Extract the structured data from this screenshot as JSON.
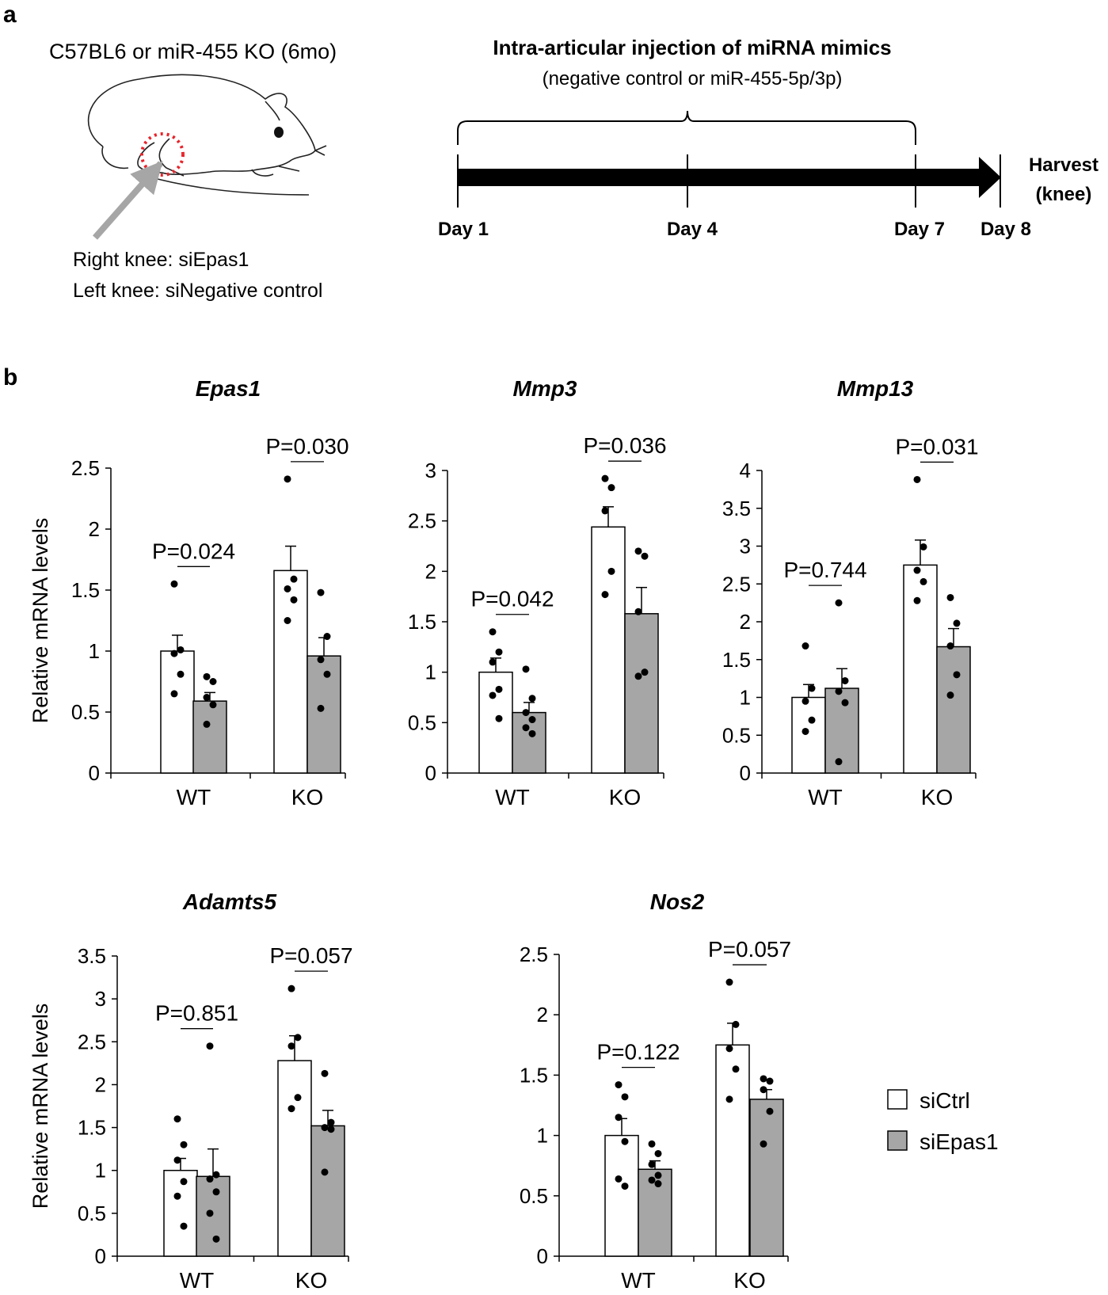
{
  "panel_a": {
    "label": "a",
    "mouse_title": "C57BL6 or miR-455  KO (6mo)",
    "right_knee": "Right knee: siEpas1",
    "left_knee": "Left knee: siNegative control",
    "injection_title": "Intra-articular injection of miRNA mimics",
    "injection_sub": "(negative control or miR-455-5p/3p)",
    "days": [
      "Day 1",
      "Day 4",
      "Day 7",
      "Day 8"
    ],
    "harvest_line1": "Harvest",
    "harvest_line2": "(knee)",
    "colors": {
      "circle": "#e8232a",
      "arrow": "#a6a6a6"
    }
  },
  "panel_b": {
    "label": "b",
    "ylabel": "Relative mRNA levels",
    "legend": [
      "siCtrl",
      "siEpas1"
    ],
    "colors": {
      "siCtrl": "#ffffff",
      "siEpas1": "#a6a6a6"
    }
  },
  "chart_data": [
    {
      "type": "bar",
      "title": "Epas1",
      "categories": [
        "WT",
        "KO"
      ],
      "ylim": [
        0,
        2.5
      ],
      "yticks": [
        "0",
        "0.5",
        "1",
        "1.5",
        "2",
        "2.5"
      ],
      "ytick_values": [
        0,
        0.5,
        1,
        1.5,
        2,
        2.5
      ],
      "ylabel": "Relative mRNA levels",
      "series": [
        {
          "name": "siCtrl",
          "values": [
            1.0,
            1.66
          ],
          "errors": [
            0.13,
            0.2
          ]
        },
        {
          "name": "siEpas1",
          "values": [
            0.59,
            0.96
          ],
          "errors": [
            0.07,
            0.15
          ]
        }
      ],
      "points": [
        [
          [
            1.55,
            1.01,
            0.98,
            0.81,
            0.65
          ],
          [
            0.79,
            0.75,
            0.62,
            0.56,
            0.4
          ]
        ],
        [
          [
            2.41,
            1.59,
            1.51,
            1.42,
            1.25
          ],
          [
            1.48,
            1.12,
            0.93,
            0.81,
            0.53
          ]
        ]
      ],
      "pvalues": [
        "P=0.024",
        "P=0.030"
      ]
    },
    {
      "type": "bar",
      "title": "Mmp3",
      "categories": [
        "WT",
        "KO"
      ],
      "ylim": [
        0,
        3
      ],
      "yticks": [
        "0",
        "0.5",
        "1",
        "1.5",
        "2",
        "2.5",
        "3"
      ],
      "ytick_values": [
        0,
        0.5,
        1,
        1.5,
        2,
        2.5,
        3
      ],
      "ylabel": "",
      "series": [
        {
          "name": "siCtrl",
          "values": [
            1.0,
            2.44
          ],
          "errors": [
            0.14,
            0.2
          ]
        },
        {
          "name": "siEpas1",
          "values": [
            0.6,
            1.58
          ],
          "errors": [
            0.1,
            0.26
          ]
        }
      ],
      "points": [
        [
          [
            1.4,
            1.2,
            1.1,
            0.83,
            0.77,
            0.54
          ],
          [
            1.03,
            0.74,
            0.6,
            0.53,
            0.45,
            0.39
          ]
        ],
        [
          [
            2.92,
            2.83,
            2.6,
            2.0,
            1.77
          ],
          [
            2.2,
            2.15,
            1.6,
            1.0,
            0.96
          ]
        ]
      ],
      "pvalues": [
        "P=0.042",
        "P=0.036"
      ]
    },
    {
      "type": "bar",
      "title": "Mmp13",
      "categories": [
        "WT",
        "KO"
      ],
      "ylim": [
        0,
        4
      ],
      "yticks": [
        "0",
        "0.5",
        "1",
        "1.5",
        "2",
        "2.5",
        "3",
        "3.5",
        "4"
      ],
      "ytick_values": [
        0,
        0.5,
        1,
        1.5,
        2,
        2.5,
        3,
        3.5,
        4
      ],
      "ylabel": "",
      "series": [
        {
          "name": "siCtrl",
          "values": [
            1.0,
            2.75
          ],
          "errors": [
            0.17,
            0.33
          ]
        },
        {
          "name": "siEpas1",
          "values": [
            1.12,
            1.67
          ],
          "errors": [
            0.26,
            0.24
          ]
        }
      ],
      "points": [
        [
          [
            1.68,
            1.12,
            0.95,
            0.7,
            0.55
          ],
          [
            2.25,
            1.22,
            1.08,
            0.93,
            0.15
          ]
        ],
        [
          [
            3.88,
            2.99,
            2.68,
            2.53,
            2.28
          ],
          [
            2.32,
            1.98,
            1.68,
            1.3,
            1.03
          ]
        ]
      ],
      "pvalues": [
        "P=0.744",
        "P=0.031"
      ]
    },
    {
      "type": "bar",
      "title": "Adamts5",
      "categories": [
        "WT",
        "KO"
      ],
      "ylim": [
        0,
        3.5
      ],
      "yticks": [
        "0",
        "0.5",
        "1",
        "1.5",
        "2",
        "2.5",
        "3",
        "3.5"
      ],
      "ytick_values": [
        0,
        0.5,
        1,
        1.5,
        2,
        2.5,
        3,
        3.5
      ],
      "ylabel": "Relative mRNA levels",
      "series": [
        {
          "name": "siCtrl",
          "values": [
            1.0,
            2.28
          ],
          "errors": [
            0.14,
            0.29
          ]
        },
        {
          "name": "siEpas1",
          "values": [
            0.93,
            1.52
          ],
          "errors": [
            0.32,
            0.18
          ]
        }
      ],
      "points": [
        [
          [
            1.6,
            1.3,
            1.12,
            0.87,
            0.7,
            0.35
          ],
          [
            2.45,
            0.95,
            0.9,
            0.75,
            0.5,
            0.2
          ]
        ],
        [
          [
            3.12,
            2.55,
            2.45,
            1.85,
            1.72
          ],
          [
            2.13,
            1.56,
            1.5,
            1.48,
            0.98
          ]
        ]
      ],
      "pvalues": [
        "P=0.851",
        "P=0.057"
      ]
    },
    {
      "type": "bar",
      "title": "Nos2",
      "categories": [
        "WT",
        "KO"
      ],
      "ylim": [
        0,
        2.5
      ],
      "yticks": [
        "0",
        "0.5",
        "1",
        "1.5",
        "2",
        "2.5"
      ],
      "ytick_values": [
        0,
        0.5,
        1,
        1.5,
        2,
        2.5
      ],
      "ylabel": "",
      "series": [
        {
          "name": "siCtrl",
          "values": [
            1.0,
            1.75
          ],
          "errors": [
            0.14,
            0.18
          ]
        },
        {
          "name": "siEpas1",
          "values": [
            0.72,
            1.3
          ],
          "errors": [
            0.07,
            0.08
          ]
        }
      ],
      "points": [
        [
          [
            1.42,
            1.32,
            1.15,
            0.95,
            0.64,
            0.58
          ],
          [
            0.93,
            0.85,
            0.76,
            0.67,
            0.63,
            0.6
          ]
        ],
        [
          [
            2.27,
            1.92,
            1.72,
            1.55,
            1.3
          ],
          [
            1.47,
            1.45,
            1.38,
            1.2,
            0.93
          ]
        ]
      ],
      "pvalues": [
        "P=0.122",
        "P=0.057"
      ]
    }
  ]
}
